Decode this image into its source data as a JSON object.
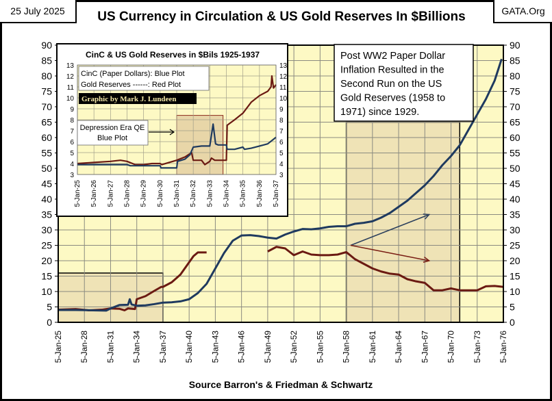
{
  "header": {
    "date": "25 July 2025",
    "source_site": "GATA.Org",
    "title": "US Currency in Circulation & US Gold Reserves In $Billions"
  },
  "footer": {
    "source": "Source Barron's & Friedman & Schwartz"
  },
  "annotation": {
    "lines": [
      "Post WW2 Paper Dollar",
      "Inflation Resulted in the",
      "Second Run on the US",
      "Gold Reserves (1958 to",
      "1971) since 1929."
    ]
  },
  "colors": {
    "cinc": "#1f3a5f",
    "gold": "#6b1a12",
    "plot_bg": "#fdf9c4",
    "shade": "#efe3b6"
  },
  "chart_data": [
    {
      "type": "line",
      "title": "US Currency in Circulation & US Gold Reserves In $Billions",
      "xlabel": "Source Barron's & Friedman & Schwartz",
      "ylabel": "",
      "ylim": [
        0,
        90
      ],
      "xlim": [
        1925,
        1976
      ],
      "yticks": [
        0,
        5,
        10,
        15,
        20,
        25,
        30,
        35,
        40,
        45,
        50,
        55,
        60,
        65,
        70,
        75,
        80,
        85,
        90
      ],
      "xticks": [
        "5-Jan-25",
        "5-Jan-28",
        "5-Jan-31",
        "5-Jan-34",
        "5-Jan-37",
        "5-Jan-40",
        "5-Jan-43",
        "5-Jan-46",
        "5-Jan-49",
        "5-Jan-52",
        "5-Jan-55",
        "5-Jan-58",
        "5-Jan-61",
        "5-Jan-64",
        "5-Jan-67",
        "5-Jan-70",
        "5-Jan-73",
        "5-Jan-76"
      ],
      "grid": true,
      "shaded_regions": [
        {
          "x": [
            1925,
            1937
          ],
          "y": [
            0,
            16
          ]
        },
        {
          "x": [
            1958,
            1971
          ],
          "y": [
            0,
            65
          ]
        }
      ],
      "series": [
        {
          "name": "CinC (Paper Dollars)",
          "color": "blue",
          "x": [
            1925,
            1927,
            1929,
            1930.5,
            1931,
            1932,
            1933,
            1933.2,
            1933.4,
            1934,
            1935,
            1936,
            1937,
            1938,
            1939,
            1940,
            1941,
            1942,
            1943,
            1944,
            1945,
            1946,
            1947,
            1948,
            1949,
            1950,
            1951,
            1952,
            1953,
            1954,
            1955,
            1956,
            1957,
            1958,
            1959,
            1960,
            1961,
            1962,
            1963,
            1964,
            1965,
            1966,
            1967,
            1968,
            1969,
            1970,
            1971,
            1972,
            1973,
            1974,
            1975,
            1975.8
          ],
          "y": [
            4,
            4,
            3.9,
            3.8,
            4.5,
            5.6,
            5.7,
            7.5,
            5.8,
            5.4,
            5.5,
            5.9,
            6.4,
            6.5,
            6.8,
            7.5,
            9.5,
            12.5,
            17.5,
            22.5,
            26.5,
            28.2,
            28.3,
            28.0,
            27.5,
            27.2,
            28.5,
            29.5,
            30.3,
            30.2,
            30.5,
            31.0,
            31.2,
            31.2,
            32.0,
            32.3,
            32.8,
            34.0,
            35.5,
            37.5,
            39.5,
            42.0,
            44.5,
            47.5,
            51.0,
            54.0,
            57.5,
            62.5,
            67.5,
            72.5,
            78.5,
            85.5
          ]
        },
        {
          "name": "Gold Reserves",
          "color": "red",
          "x": [
            1925,
            1927,
            1928.5,
            1930,
            1931,
            1932,
            1932.6,
            1933,
            1933.8,
            1934,
            1935,
            1936,
            1936.8,
            1937,
            1938,
            1939,
            1940,
            1940.5,
            1941,
            1942
          ],
          "y": [
            4.1,
            4.3,
            3.9,
            4.1,
            4.5,
            4.4,
            3.9,
            4.5,
            4.3,
            7.5,
            8.5,
            10.2,
            11.5,
            11.5,
            13,
            15.5,
            19.5,
            21.5,
            22.7,
            22.7
          ],
          "x2": [
            1949,
            1950,
            1951,
            1952,
            1953,
            1954,
            1955,
            1956,
            1957,
            1958,
            1959,
            1960,
            1961,
            1962,
            1963,
            1964,
            1965,
            1966,
            1967,
            1968,
            1969,
            1970,
            1971,
            1972,
            1973,
            1974,
            1975,
            1976
          ],
          "y2": [
            23.0,
            24.5,
            24.0,
            21.8,
            23.0,
            22.0,
            21.8,
            21.8,
            22.0,
            22.8,
            20.5,
            19.0,
            17.5,
            16.5,
            15.8,
            15.5,
            14.0,
            13.3,
            12.8,
            10.4,
            10.4,
            11.0,
            10.4,
            10.4,
            10.4,
            11.7,
            11.8,
            11.5
          ]
        }
      ],
      "arrows": [
        {
          "label": "blue-arrow",
          "from": [
            1958.5,
            25
          ],
          "to": [
            1967.5,
            35
          ]
        },
        {
          "label": "red-arrow",
          "from": [
            1958.5,
            25
          ],
          "to": [
            1967.5,
            20
          ]
        }
      ]
    },
    {
      "type": "line",
      "title": "CinC & US Gold Reserves in $Bils 1925-1937",
      "ylim": [
        3,
        13
      ],
      "xlim": [
        1925,
        1937
      ],
      "yticks": [
        3,
        4,
        5,
        6,
        7,
        8,
        9,
        10,
        11,
        12,
        13
      ],
      "xticks": [
        "5-Jan-25",
        "5-Jan-26",
        "5-Jan-27",
        "5-Jan-28",
        "5-Jan-29",
        "5-Jan-30",
        "5-Jan-31",
        "5-Jan-32",
        "5-Jan-33",
        "5-Jan-34",
        "5-Jan-35",
        "5-Jan-36",
        "5-Jan-37"
      ],
      "grid": true,
      "legend": [
        "CinC (Paper Dollars):  Blue Plot",
        "Gold Reserves ------:  Red Plot"
      ],
      "credit": "Graphic by Mark J. Lundeen",
      "callout": [
        "Depression Era QE",
        "Blue Plot"
      ],
      "shaded_regions": [
        {
          "x": [
            1931,
            1933.8
          ],
          "y": [
            3,
            8.4
          ]
        }
      ],
      "series": [
        {
          "name": "CinC",
          "color": "blue",
          "x": [
            1925,
            1926,
            1927,
            1928,
            1928.2,
            1929,
            1930,
            1930.05,
            1931,
            1931.05,
            1931.5,
            1931.8,
            1932,
            1932.5,
            1933,
            1933.2,
            1933.35,
            1933.5,
            1934,
            1934.05,
            1934.5,
            1935,
            1935.1,
            1935.5,
            1936,
            1936.5,
            1937
          ],
          "y": [
            3.9,
            3.9,
            3.9,
            3.9,
            3.8,
            3.8,
            3.8,
            3.6,
            3.6,
            4.2,
            4.4,
            4.8,
            5.5,
            5.6,
            5.6,
            7.6,
            5.8,
            5.7,
            5.7,
            5.3,
            5.3,
            5.5,
            5.3,
            5.4,
            5.6,
            5.8,
            6.4
          ]
        },
        {
          "name": "Gold Reserves",
          "color": "red",
          "x": [
            1925,
            1926,
            1927,
            1927.6,
            1928,
            1928.5,
            1929,
            1929.5,
            1930,
            1930.1,
            1931,
            1931.5,
            1931.9,
            1932,
            1932.5,
            1932.7,
            1933,
            1933.1,
            1933.3,
            1933.9,
            1934,
            1934.05,
            1934.5,
            1935,
            1935.5,
            1936,
            1936.5,
            1936.7,
            1936.75,
            1936.85,
            1937
          ],
          "y": [
            4.0,
            4.1,
            4.2,
            4.3,
            4.2,
            3.9,
            3.9,
            4.0,
            4.0,
            3.9,
            4.3,
            4.6,
            5.0,
            4.3,
            4.3,
            3.9,
            4.2,
            4.5,
            4.3,
            4.3,
            4.3,
            7.5,
            8.0,
            8.6,
            9.6,
            10.2,
            10.6,
            11.0,
            12.0,
            10.9,
            11.2
          ]
        }
      ]
    }
  ]
}
